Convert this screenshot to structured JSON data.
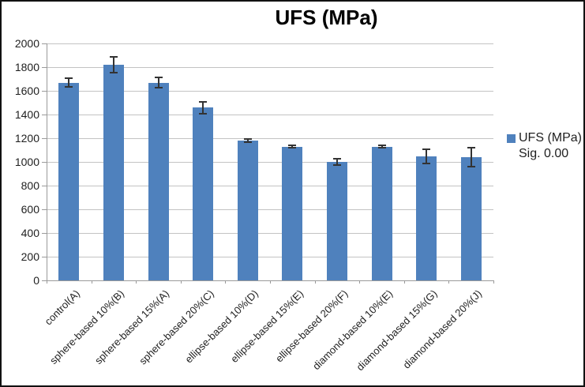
{
  "chart_data": {
    "type": "bar",
    "title": "UFS (MPa)",
    "categories": [
      "control(A)",
      "sphere-based 10%(B)",
      "sphere-based 15%(A)",
      "sphere-based 20%(C)",
      "ellipse-based 10%(D)",
      "ellipse-based 15%(E)",
      "ellipse-based 20%(F)",
      "diamond-based 10%(E)",
      "diamond-based 15%(G)",
      "diamond-based 20%(J)"
    ],
    "series": [
      {
        "name": "UFS (MPa)",
        "values": [
          1670,
          1820,
          1670,
          1460,
          1180,
          1130,
          1000,
          1130,
          1045,
          1040
        ],
        "errors": [
          35,
          65,
          45,
          50,
          15,
          10,
          25,
          10,
          60,
          80
        ]
      }
    ],
    "xlabel": "",
    "ylabel": "",
    "ylim": [
      0,
      2000
    ],
    "yticks": [
      0,
      200,
      400,
      600,
      800,
      1000,
      1200,
      1400,
      1600,
      1800,
      2000
    ],
    "grid": true,
    "legend": {
      "label": "UFS (MPa)",
      "sub": "Sig. 0.00",
      "position": "right"
    },
    "colors": {
      "bar": "#4f81bd",
      "gridline": "#c3c3c3",
      "axis": "#9a9a9a",
      "error": "#333333",
      "text": "#1f1f1f"
    }
  }
}
